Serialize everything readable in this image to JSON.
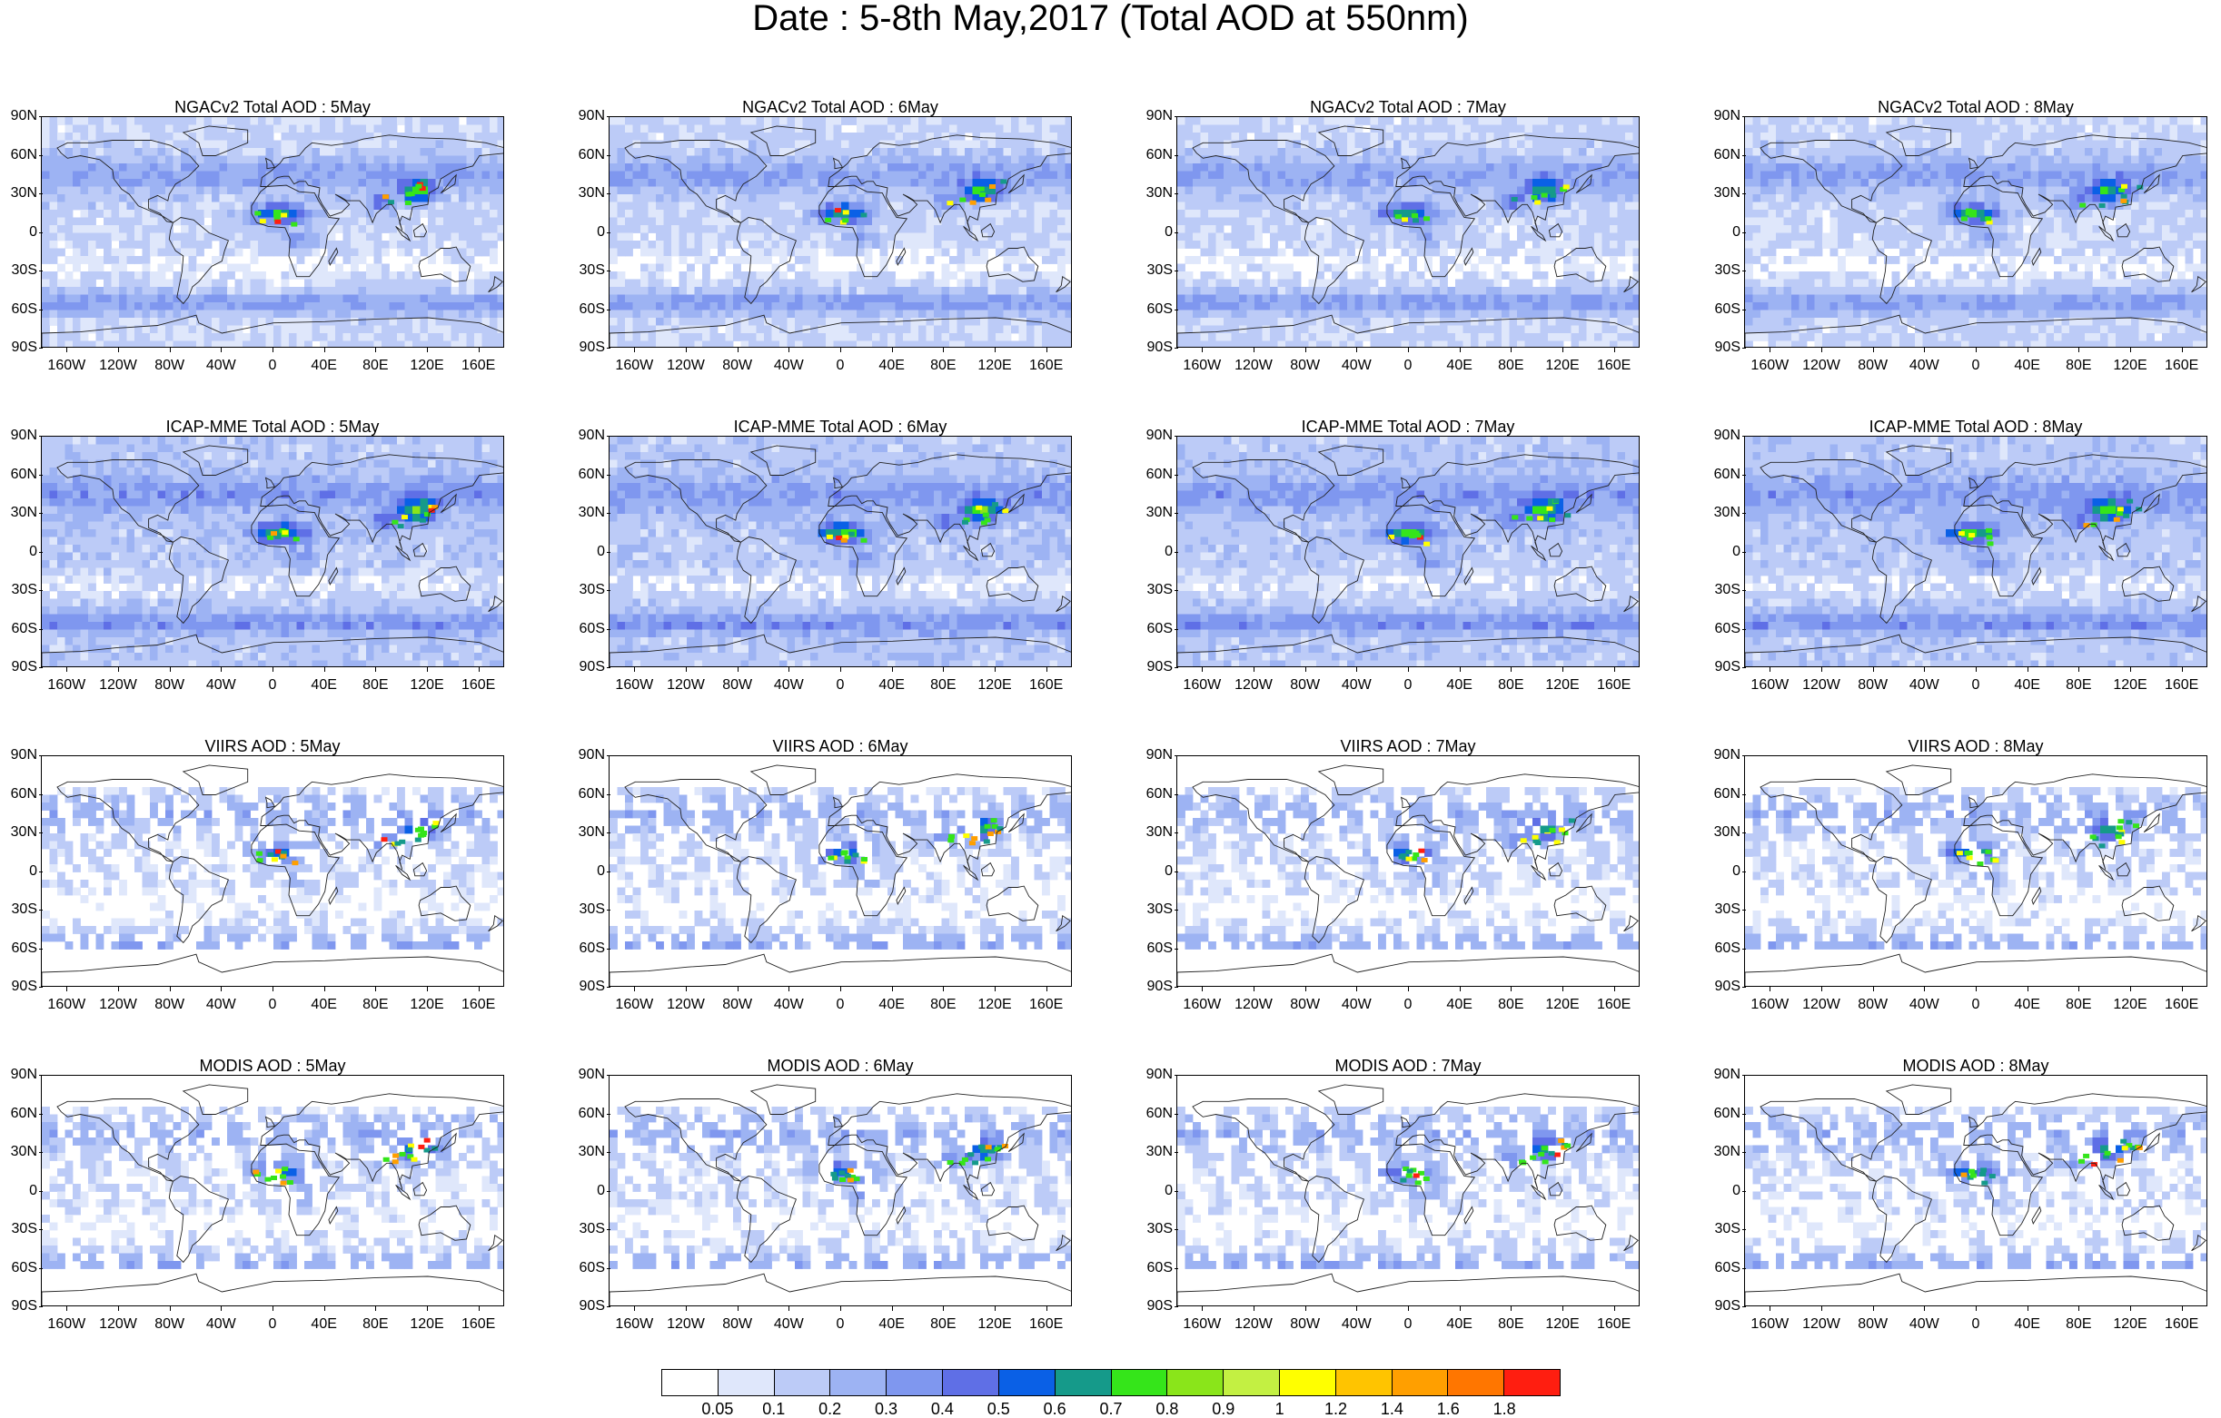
{
  "title": "Date : 5-8th May,2017 (Total AOD at 550nm)",
  "rows": [
    {
      "product": "NGACv2",
      "panels": [
        "NGACv2 Total AOD : 5May",
        "NGACv2 Total AOD : 6May",
        "NGACv2 Total AOD : 7May",
        "NGACv2 Total AOD : 8May"
      ],
      "coverage": "full"
    },
    {
      "product": "ICAP-MME",
      "panels": [
        "ICAP-MME Total AOD : 5May",
        "ICAP-MME Total AOD : 6May",
        "ICAP-MME Total AOD : 7May",
        "ICAP-MME Total AOD : 8May"
      ],
      "coverage": "full"
    },
    {
      "product": "VIIRS",
      "panels": [
        "VIIRS AOD : 5May",
        "VIIRS AOD : 6May",
        "VIIRS AOD : 7May",
        "VIIRS AOD : 8May"
      ],
      "coverage": "swath"
    },
    {
      "product": "MODIS",
      "panels": [
        "MODIS AOD : 5May",
        "MODIS AOD : 6May",
        "MODIS AOD : 7May",
        "MODIS AOD : 8May"
      ],
      "coverage": "swath"
    }
  ],
  "lat_labels": [
    "90N",
    "60N",
    "30N",
    "0",
    "30S",
    "60S",
    "90S"
  ],
  "lon_labels": [
    "160W",
    "120W",
    "80W",
    "40W",
    "0",
    "40E",
    "80E",
    "120E",
    "160E"
  ],
  "colorbar": {
    "levels": [
      "0.05",
      "0.1",
      "0.2",
      "0.3",
      "0.4",
      "0.5",
      "0.6",
      "0.7",
      "0.8",
      "0.9",
      "1",
      "1.2",
      "1.4",
      "1.6",
      "1.8"
    ],
    "colors": [
      "#ffffff",
      "#dfe7fb",
      "#bccbf7",
      "#9db3f3",
      "#7f97ef",
      "#5f6fe6",
      "#0a60e6",
      "#159a8a",
      "#35e51a",
      "#8ae51a",
      "#c3f042",
      "#ffff00",
      "#ffc400",
      "#ff9f00",
      "#ff7600",
      "#ff1e10"
    ]
  }
}
